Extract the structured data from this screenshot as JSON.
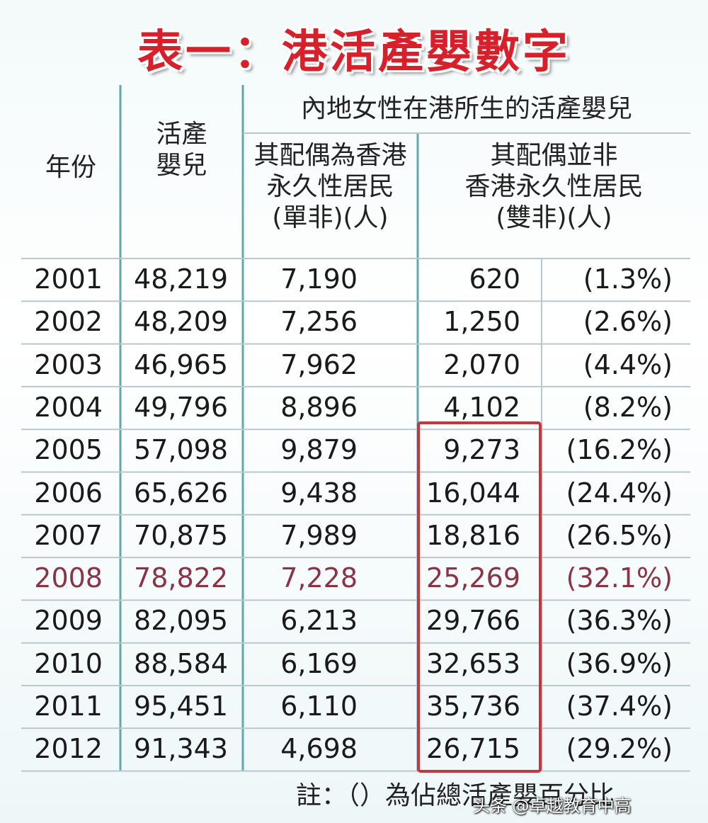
{
  "title": "表一：港活產嬰數字",
  "table": {
    "headers": {
      "year": "年份",
      "births": "活產\n嬰兒",
      "group": "內地女性在港所生的活產嬰兒",
      "single": "其配偶為香港\n永久性居民\n(單非)(人)",
      "double": "其配偶並非\n香港永久性居民\n(雙非)(人)"
    },
    "rows": [
      [
        "2001",
        "48,219",
        "7,190",
        "620",
        "(1.3%)"
      ],
      [
        "2002",
        "48,209",
        "7,256",
        "1,250",
        "(2.6%)"
      ],
      [
        "2003",
        "46,965",
        "7,962",
        "2,070",
        "(4.4%)"
      ],
      [
        "2004",
        "49,796",
        "8,896",
        "4,102",
        "(8.2%)"
      ],
      [
        "2005",
        "57,098",
        "9,879",
        "9,273",
        "(16.2%)"
      ],
      [
        "2006",
        "65,626",
        "9,438",
        "16,044",
        "(24.4%)"
      ],
      [
        "2007",
        "70,875",
        "7,989",
        "18,816",
        "(26.5%)"
      ],
      [
        "2008",
        "78,822",
        "7,228",
        "25,269",
        "(32.1%)"
      ],
      [
        "2009",
        "82,095",
        "6,213",
        "29,766",
        "(36.3%)"
      ],
      [
        "2010",
        "88,584",
        "6,169",
        "32,653",
        "(36.9%)"
      ],
      [
        "2011",
        "95,451",
        "6,110",
        "35,736",
        "(37.4%)"
      ],
      [
        "2012",
        "91,343",
        "4,698",
        "26,715",
        "(29.2%)"
      ]
    ]
  },
  "note": "註：（）為佔總活產嬰百分比",
  "watermark": "头条 @卓越教育中高"
}
